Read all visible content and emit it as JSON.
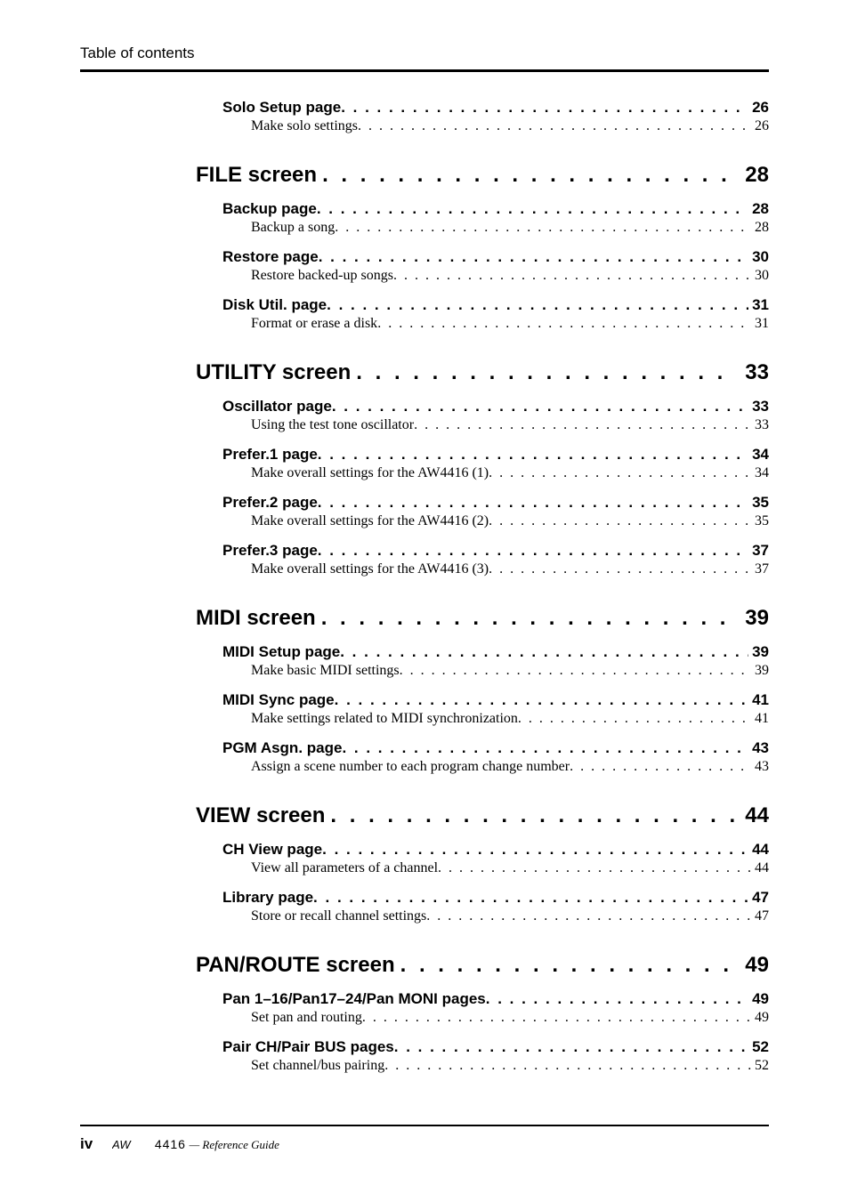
{
  "header": {
    "title": "Table of contents"
  },
  "toc": [
    {
      "level": "entry",
      "label": "Solo Setup page",
      "page": "26"
    },
    {
      "level": "sub",
      "label": "Make solo settings",
      "page": "26"
    },
    {
      "level": "section",
      "label": "FILE screen",
      "page": "28"
    },
    {
      "level": "entry",
      "label": "Backup page",
      "page": "28"
    },
    {
      "level": "sub",
      "label": "Backup a song",
      "page": "28"
    },
    {
      "level": "entry",
      "label": "Restore page",
      "page": "30"
    },
    {
      "level": "sub",
      "label": "Restore backed-up songs",
      "page": "30"
    },
    {
      "level": "entry",
      "label": "Disk Util. page",
      "page": "31"
    },
    {
      "level": "sub",
      "label": "Format or erase a disk",
      "page": "31"
    },
    {
      "level": "section",
      "label": "UTILITY screen",
      "page": "33"
    },
    {
      "level": "entry",
      "label": "Oscillator page",
      "page": "33"
    },
    {
      "level": "sub",
      "label": "Using the test tone oscillator",
      "page": "33"
    },
    {
      "level": "entry",
      "label": "Prefer.1 page",
      "page": "34"
    },
    {
      "level": "sub",
      "label": "Make overall settings for the AW4416 (1)",
      "page": "34"
    },
    {
      "level": "entry",
      "label": "Prefer.2 page",
      "page": "35"
    },
    {
      "level": "sub",
      "label": "Make overall settings for the AW4416 (2)",
      "page": "35"
    },
    {
      "level": "entry",
      "label": "Prefer.3 page",
      "page": "37"
    },
    {
      "level": "sub",
      "label": "Make overall settings for the AW4416 (3)",
      "page": "37"
    },
    {
      "level": "section",
      "label": "MIDI screen",
      "page": "39"
    },
    {
      "level": "entry",
      "label": "MIDI Setup page",
      "page": "39"
    },
    {
      "level": "sub",
      "label": "Make basic MIDI settings",
      "page": "39"
    },
    {
      "level": "entry",
      "label": "MIDI Sync page",
      "page": "41"
    },
    {
      "level": "sub",
      "label": "Make settings related to MIDI synchronization",
      "page": "41"
    },
    {
      "level": "entry",
      "label": "PGM Asgn. page",
      "page": "43"
    },
    {
      "level": "sub",
      "label": "Assign a scene number to each program change number",
      "page": "43"
    },
    {
      "level": "section",
      "label": "VIEW screen",
      "page": "44"
    },
    {
      "level": "entry",
      "label": "CH View page",
      "page": "44"
    },
    {
      "level": "sub",
      "label": "View all parameters of a channel",
      "page": "44"
    },
    {
      "level": "entry",
      "label": "Library page",
      "page": "47"
    },
    {
      "level": "sub",
      "label": "Store or recall channel settings",
      "page": "47"
    },
    {
      "level": "section",
      "label": "PAN/ROUTE screen",
      "page": "49"
    },
    {
      "level": "entry",
      "label": "Pan 1–16/Pan17–24/Pan MONI pages",
      "page": "49"
    },
    {
      "level": "sub",
      "label": "Set pan and routing",
      "page": "49"
    },
    {
      "level": "entry",
      "label": "Pair CH/Pair BUS pages",
      "page": "52"
    },
    {
      "level": "sub",
      "label": "Set channel/bus pairing",
      "page": "52"
    }
  ],
  "footer": {
    "page_number": "iv",
    "model": "4416",
    "guide": "— Reference Guide"
  },
  "colors": {
    "text": "#000000",
    "background": "#ffffff",
    "rule": "#000000"
  }
}
